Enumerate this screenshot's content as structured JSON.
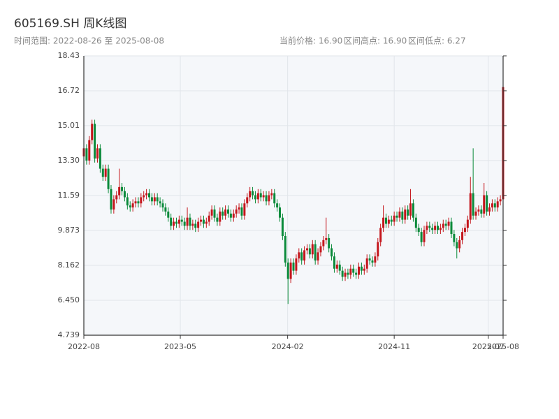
{
  "chart_data": {
    "type": "candlestick",
    "title": "605169.SH 周K线图",
    "subtitle": "时间范围: 2022-08-26 至 2025-08-08",
    "stats": [
      "当前价格: 16.90",
      "区间高点: 16.90",
      "区间低点: 6.27"
    ],
    "up_color": "#c4161c",
    "down_color": "#0a8a3a",
    "grid": true,
    "xlim": [
      "2022-08-26",
      "2025-08-08"
    ],
    "xticks": [
      {
        "value": "2022-08-26",
        "label": "2022-08"
      },
      {
        "value": "2023-05-01",
        "label": "2023-05"
      },
      {
        "value": "2024-02-01",
        "label": "2024-02"
      },
      {
        "value": "2024-11-01",
        "label": "2024-11"
      },
      {
        "value": "2025-07-01",
        "label": "2025-07"
      },
      {
        "value": "2025-08-08",
        "label": "2025-08"
      }
    ],
    "ylim": [
      4.739,
      18.43
    ],
    "yticks": [
      4.739,
      {
        "value": 6.45,
        "label": "6.450"
      },
      8.162,
      9.873,
      11.59,
      {
        "value": 13.3,
        "label": "13.30"
      },
      15.01,
      16.72,
      18.43
    ],
    "x": [
      "2022-08-26",
      "2022-09-02",
      "2022-09-09",
      "2022-09-16",
      "2022-09-23",
      "2022-09-30",
      "2022-10-07",
      "2022-10-14",
      "2022-10-21",
      "2022-10-28",
      "2022-11-04",
      "2022-11-11",
      "2022-11-18",
      "2022-11-25",
      "2022-12-02",
      "2022-12-09",
      "2022-12-16",
      "2022-12-23",
      "2022-12-30",
      "2023-01-06",
      "2023-01-13",
      "2023-01-20",
      "2023-01-27",
      "2023-02-03",
      "2023-02-10",
      "2023-02-17",
      "2023-02-24",
      "2023-03-03",
      "2023-03-10",
      "2023-03-17",
      "2023-03-24",
      "2023-03-31",
      "2023-04-07",
      "2023-04-14",
      "2023-04-21",
      "2023-04-28",
      "2023-05-05",
      "2023-05-12",
      "2023-05-19",
      "2023-05-26",
      "2023-06-02",
      "2023-06-09",
      "2023-06-16",
      "2023-06-23",
      "2023-06-30",
      "2023-07-07",
      "2023-07-14",
      "2023-07-21",
      "2023-07-28",
      "2023-08-04",
      "2023-08-11",
      "2023-08-18",
      "2023-08-25",
      "2023-09-01",
      "2023-09-08",
      "2023-09-15",
      "2023-09-22",
      "2023-09-29",
      "2023-10-06",
      "2023-10-13",
      "2023-10-20",
      "2023-10-27",
      "2023-11-03",
      "2023-11-10",
      "2023-11-17",
      "2023-11-24",
      "2023-12-01",
      "2023-12-08",
      "2023-12-15",
      "2023-12-22",
      "2023-12-29",
      "2024-01-05",
      "2024-01-12",
      "2024-01-19",
      "2024-01-26",
      "2024-02-02",
      "2024-02-09",
      "2024-02-16",
      "2024-02-23",
      "2024-03-01",
      "2024-03-08",
      "2024-03-15",
      "2024-03-22",
      "2024-03-29",
      "2024-04-05",
      "2024-04-12",
      "2024-04-19",
      "2024-04-26",
      "2024-05-03",
      "2024-05-10",
      "2024-05-17",
      "2024-05-24",
      "2024-05-31",
      "2024-06-07",
      "2024-06-14",
      "2024-06-21",
      "2024-06-28",
      "2024-07-05",
      "2024-07-12",
      "2024-07-19",
      "2024-07-26",
      "2024-08-02",
      "2024-08-09",
      "2024-08-16",
      "2024-08-23",
      "2024-08-30",
      "2024-09-06",
      "2024-09-13",
      "2024-09-20",
      "2024-09-27",
      "2024-10-04",
      "2024-10-11",
      "2024-10-18",
      "2024-10-25",
      "2024-11-01",
      "2024-11-08",
      "2024-11-15",
      "2024-11-22",
      "2024-11-29",
      "2024-12-06",
      "2024-12-13",
      "2024-12-20",
      "2024-12-27",
      "2025-01-03",
      "2025-01-10",
      "2025-01-17",
      "2025-01-24",
      "2025-01-31",
      "2025-02-07",
      "2025-02-14",
      "2025-02-21",
      "2025-02-28",
      "2025-03-07",
      "2025-03-14",
      "2025-03-21",
      "2025-03-28",
      "2025-04-04",
      "2025-04-11",
      "2025-04-18",
      "2025-04-25",
      "2025-05-02",
      "2025-05-09",
      "2025-05-16",
      "2025-05-23",
      "2025-05-30",
      "2025-06-06",
      "2025-06-13",
      "2025-06-20",
      "2025-06-27",
      "2025-07-04",
      "2025-07-11",
      "2025-07-18",
      "2025-07-25",
      "2025-08-01",
      "2025-08-08"
    ],
    "open": [
      13.5,
      13.9,
      13.3,
      14.3,
      15.1,
      13.4,
      13.9,
      12.9,
      12.5,
      12.9,
      11.9,
      10.9,
      11.4,
      11.6,
      12.0,
      11.8,
      11.5,
      11.1,
      11.0,
      11.2,
      11.3,
      11.2,
      11.5,
      11.6,
      11.7,
      11.5,
      11.3,
      11.5,
      11.3,
      11.2,
      11.0,
      10.8,
      10.5,
      10.1,
      10.3,
      10.2,
      10.4,
      10.3,
      10.1,
      10.5,
      10.1,
      10.2,
      10.0,
      10.3,
      10.4,
      10.2,
      10.3,
      10.6,
      10.9,
      10.5,
      10.3,
      10.8,
      10.6,
      10.9,
      10.7,
      10.5,
      10.7,
      10.9,
      11.0,
      10.6,
      11.2,
      11.5,
      11.8,
      11.6,
      11.4,
      11.7,
      11.5,
      11.6,
      11.3,
      11.6,
      11.7,
      11.2,
      11.0,
      10.5,
      9.6,
      8.3,
      7.5,
      8.3,
      7.9,
      8.5,
      8.8,
      8.4,
      8.9,
      9.0,
      8.7,
      9.2,
      8.4,
      8.8,
      9.1,
      9.4,
      9.5,
      9.0,
      8.6,
      8.0,
      8.2,
      7.9,
      7.6,
      7.8,
      7.7,
      8.0,
      7.8,
      7.7,
      8.1,
      7.9,
      8.0,
      8.5,
      8.4,
      8.3,
      8.6,
      9.3,
      10.0,
      10.5,
      10.2,
      10.4,
      10.3,
      10.6,
      10.5,
      10.8,
      10.4,
      10.9,
      10.6,
      11.2,
      10.5,
      10.0,
      9.8,
      9.3,
      9.9,
      10.1,
      10.0,
      9.9,
      10.1,
      9.9,
      10.0,
      10.2,
      10.1,
      10.3,
      9.7,
      9.3,
      9.0,
      9.4,
      9.8,
      10.0,
      10.4,
      11.7,
      10.6,
      10.8,
      10.9,
      10.7,
      11.6,
      10.8,
      11.0,
      11.2,
      11.0,
      11.3,
      11.4
    ],
    "high": [
      14.1,
      14.1,
      14.5,
      15.3,
      15.3,
      14.1,
      14.1,
      13.1,
      13.1,
      13.1,
      12.1,
      11.6,
      11.8,
      12.9,
      12.2,
      12.0,
      11.7,
      11.3,
      11.4,
      11.5,
      11.5,
      11.7,
      11.8,
      11.9,
      11.9,
      11.7,
      11.7,
      11.7,
      11.5,
      11.4,
      11.2,
      11.0,
      10.7,
      10.5,
      10.5,
      10.6,
      10.6,
      10.5,
      11.0,
      10.7,
      10.4,
      10.4,
      10.5,
      10.6,
      10.6,
      10.5,
      10.8,
      11.1,
      11.1,
      10.7,
      11.0,
      11.0,
      11.1,
      11.1,
      10.9,
      10.9,
      11.1,
      11.2,
      11.2,
      11.4,
      11.7,
      12.0,
      12.0,
      11.8,
      11.9,
      11.9,
      11.8,
      11.8,
      11.8,
      11.9,
      11.9,
      11.4,
      11.2,
      10.7,
      9.8,
      8.5,
      8.5,
      8.5,
      8.7,
      9.0,
      9.0,
      9.1,
      9.2,
      9.2,
      9.4,
      9.4,
      9.0,
      9.3,
      9.6,
      10.5,
      9.7,
      9.2,
      8.8,
      8.4,
      8.4,
      8.1,
      8.0,
      8.0,
      8.2,
      8.2,
      8.0,
      8.3,
      8.3,
      8.2,
      8.7,
      8.7,
      8.6,
      8.8,
      9.5,
      10.2,
      11.1,
      10.7,
      10.6,
      10.6,
      10.8,
      10.8,
      11.0,
      11.0,
      11.1,
      11.1,
      11.9,
      11.4,
      10.7,
      10.2,
      10.0,
      10.1,
      10.3,
      10.3,
      10.2,
      10.3,
      10.3,
      10.2,
      10.4,
      10.4,
      10.5,
      10.5,
      9.9,
      9.5,
      9.6,
      10.0,
      10.2,
      10.6,
      12.5,
      13.9,
      11.0,
      11.1,
      11.1,
      12.2,
      11.8,
      11.2,
      11.4,
      11.4,
      11.5,
      11.6,
      16.9
    ],
    "low": [
      13.3,
      13.1,
      13.1,
      14.1,
      13.2,
      13.2,
      12.7,
      12.3,
      12.3,
      11.7,
      10.7,
      10.7,
      11.2,
      11.4,
      11.6,
      11.3,
      10.9,
      10.8,
      10.8,
      11.0,
      11.0,
      11.0,
      11.3,
      11.4,
      11.3,
      11.1,
      11.1,
      11.1,
      11.0,
      10.8,
      10.6,
      10.3,
      9.9,
      9.9,
      10.0,
      10.0,
      10.1,
      9.9,
      9.9,
      9.9,
      9.9,
      9.8,
      9.8,
      10.1,
      10.0,
      10.0,
      10.1,
      10.4,
      10.3,
      10.1,
      10.1,
      10.4,
      10.4,
      10.5,
      10.3,
      10.3,
      10.5,
      10.7,
      10.4,
      10.4,
      11.0,
      11.3,
      11.4,
      11.2,
      11.2,
      11.3,
      11.3,
      11.1,
      11.1,
      11.4,
      11.0,
      10.8,
      10.3,
      9.4,
      8.1,
      6.27,
      7.3,
      7.7,
      7.7,
      8.3,
      8.2,
      8.2,
      8.7,
      8.5,
      8.5,
      8.2,
      8.2,
      8.6,
      8.9,
      9.2,
      8.8,
      8.4,
      7.8,
      7.8,
      7.7,
      7.4,
      7.4,
      7.5,
      7.5,
      7.6,
      7.5,
      7.5,
      7.7,
      7.7,
      7.8,
      8.2,
      8.1,
      8.1,
      8.4,
      9.1,
      9.8,
      10.0,
      10.0,
      10.1,
      10.1,
      10.3,
      10.3,
      10.2,
      10.2,
      10.4,
      10.4,
      10.3,
      9.8,
      9.6,
      9.1,
      9.1,
      9.7,
      9.8,
      9.7,
      9.7,
      9.7,
      9.7,
      9.8,
      9.9,
      9.9,
      9.5,
      9.1,
      8.5,
      8.8,
      9.2,
      9.6,
      9.8,
      10.2,
      10.4,
      10.4,
      10.6,
      10.5,
      10.5,
      10.6,
      10.6,
      10.8,
      10.8,
      10.8,
      11.1,
      11.3
    ],
    "close": [
      13.9,
      13.3,
      14.3,
      15.1,
      13.4,
      13.9,
      12.9,
      12.5,
      12.9,
      11.9,
      10.9,
      11.4,
      11.6,
      12.0,
      11.8,
      11.5,
      11.1,
      11.0,
      11.2,
      11.3,
      11.2,
      11.5,
      11.6,
      11.7,
      11.5,
      11.3,
      11.5,
      11.3,
      11.2,
      11.0,
      10.8,
      10.5,
      10.1,
      10.3,
      10.2,
      10.4,
      10.3,
      10.1,
      10.5,
      10.1,
      10.2,
      10.0,
      10.3,
      10.4,
      10.2,
      10.3,
      10.6,
      10.9,
      10.5,
      10.3,
      10.8,
      10.6,
      10.9,
      10.7,
      10.5,
      10.7,
      10.9,
      11.0,
      10.6,
      11.2,
      11.5,
      11.8,
      11.6,
      11.4,
      11.7,
      11.5,
      11.6,
      11.3,
      11.6,
      11.7,
      11.2,
      11.0,
      10.5,
      9.6,
      8.3,
      7.5,
      8.3,
      7.9,
      8.5,
      8.8,
      8.4,
      8.9,
      9.0,
      8.7,
      9.2,
      8.4,
      8.8,
      9.1,
      9.4,
      9.5,
      9.0,
      8.6,
      8.0,
      8.2,
      7.9,
      7.6,
      7.8,
      7.7,
      8.0,
      7.8,
      7.7,
      8.1,
      7.9,
      8.0,
      8.5,
      8.4,
      8.3,
      8.6,
      9.3,
      10.0,
      10.5,
      10.2,
      10.4,
      10.3,
      10.6,
      10.5,
      10.8,
      10.4,
      10.9,
      10.6,
      11.2,
      10.5,
      10.0,
      9.8,
      9.3,
      9.9,
      10.1,
      10.0,
      9.9,
      10.1,
      9.9,
      10.0,
      10.2,
      10.1,
      10.3,
      9.7,
      9.3,
      9.0,
      9.4,
      9.8,
      10.0,
      10.4,
      11.7,
      10.6,
      10.8,
      10.9,
      10.7,
      11.6,
      10.8,
      11.0,
      11.2,
      11.0,
      11.3,
      11.4,
      16.9
    ]
  }
}
